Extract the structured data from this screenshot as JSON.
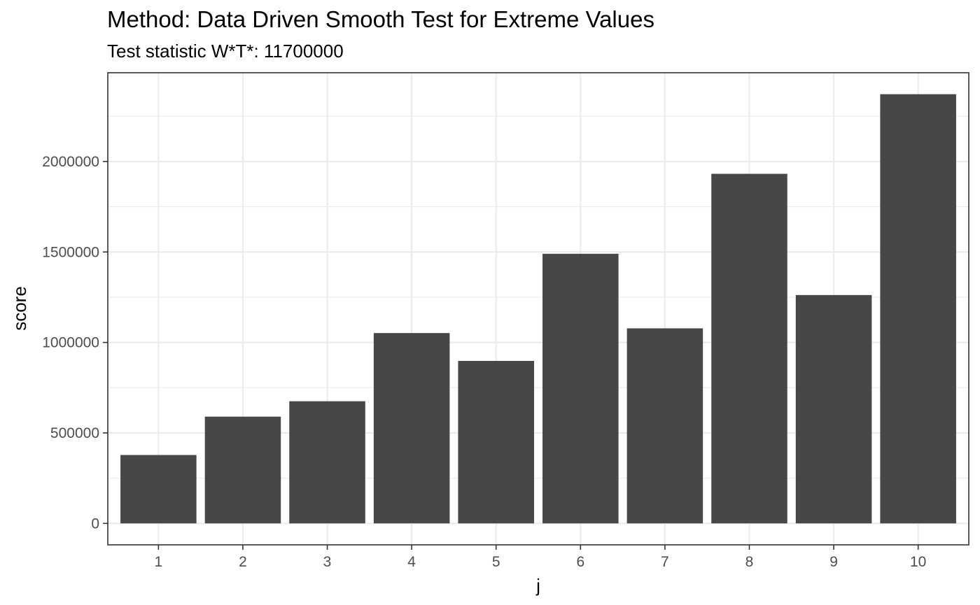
{
  "chart_data": {
    "type": "bar",
    "title": "Method: Data Driven Smooth Test for Extreme Values",
    "subtitle": "Test statistic W*T*: 11700000",
    "xlabel": "j",
    "ylabel": "score",
    "categories": [
      "1",
      "2",
      "3",
      "4",
      "5",
      "6",
      "7",
      "8",
      "9",
      "10"
    ],
    "values": [
      378000,
      590000,
      675000,
      1052000,
      898000,
      1490000,
      1078000,
      1932000,
      1262000,
      2372000
    ],
    "ylim": [
      -118600,
      2490600
    ],
    "y_ticks": [
      0,
      500000,
      1000000,
      1500000,
      2000000
    ],
    "y_tick_labels": [
      "0",
      "500000",
      "1000000",
      "1500000",
      "2000000"
    ],
    "bar_color": "#474747",
    "grid": true,
    "legend": "none"
  }
}
